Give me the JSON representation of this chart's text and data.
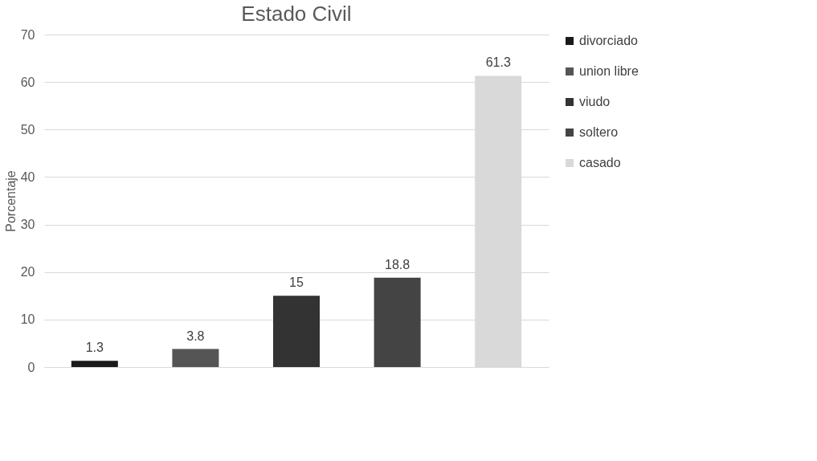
{
  "chart_data": {
    "type": "bar",
    "title": "Estado Civil",
    "ylabel": "Porcentaje",
    "categories": [
      null,
      null,
      null,
      null,
      null
    ],
    "series": [
      {
        "name": "divorciado",
        "color": "#1a1a1a",
        "values": [
          1.3,
          null,
          null,
          null,
          null
        ]
      },
      {
        "name": "union libre",
        "color": "#555555",
        "values": [
          null,
          3.8,
          null,
          null,
          null
        ]
      },
      {
        "name": "viudo",
        "color": "#333333",
        "values": [
          null,
          null,
          15,
          null,
          null
        ]
      },
      {
        "name": "soltero",
        "color": "#444444",
        "values": [
          null,
          null,
          null,
          18.8,
          null
        ]
      },
      {
        "name": "casado",
        "color": "#d9d9d9",
        "values": [
          null,
          null,
          null,
          null,
          61.3
        ]
      }
    ],
    "ylim": [
      0,
      70
    ],
    "yticks": [
      0,
      10,
      20,
      30,
      40,
      50,
      60,
      70
    ],
    "grid": "y",
    "legend": "right",
    "data_labels": true,
    "tick_labels": "y"
  }
}
